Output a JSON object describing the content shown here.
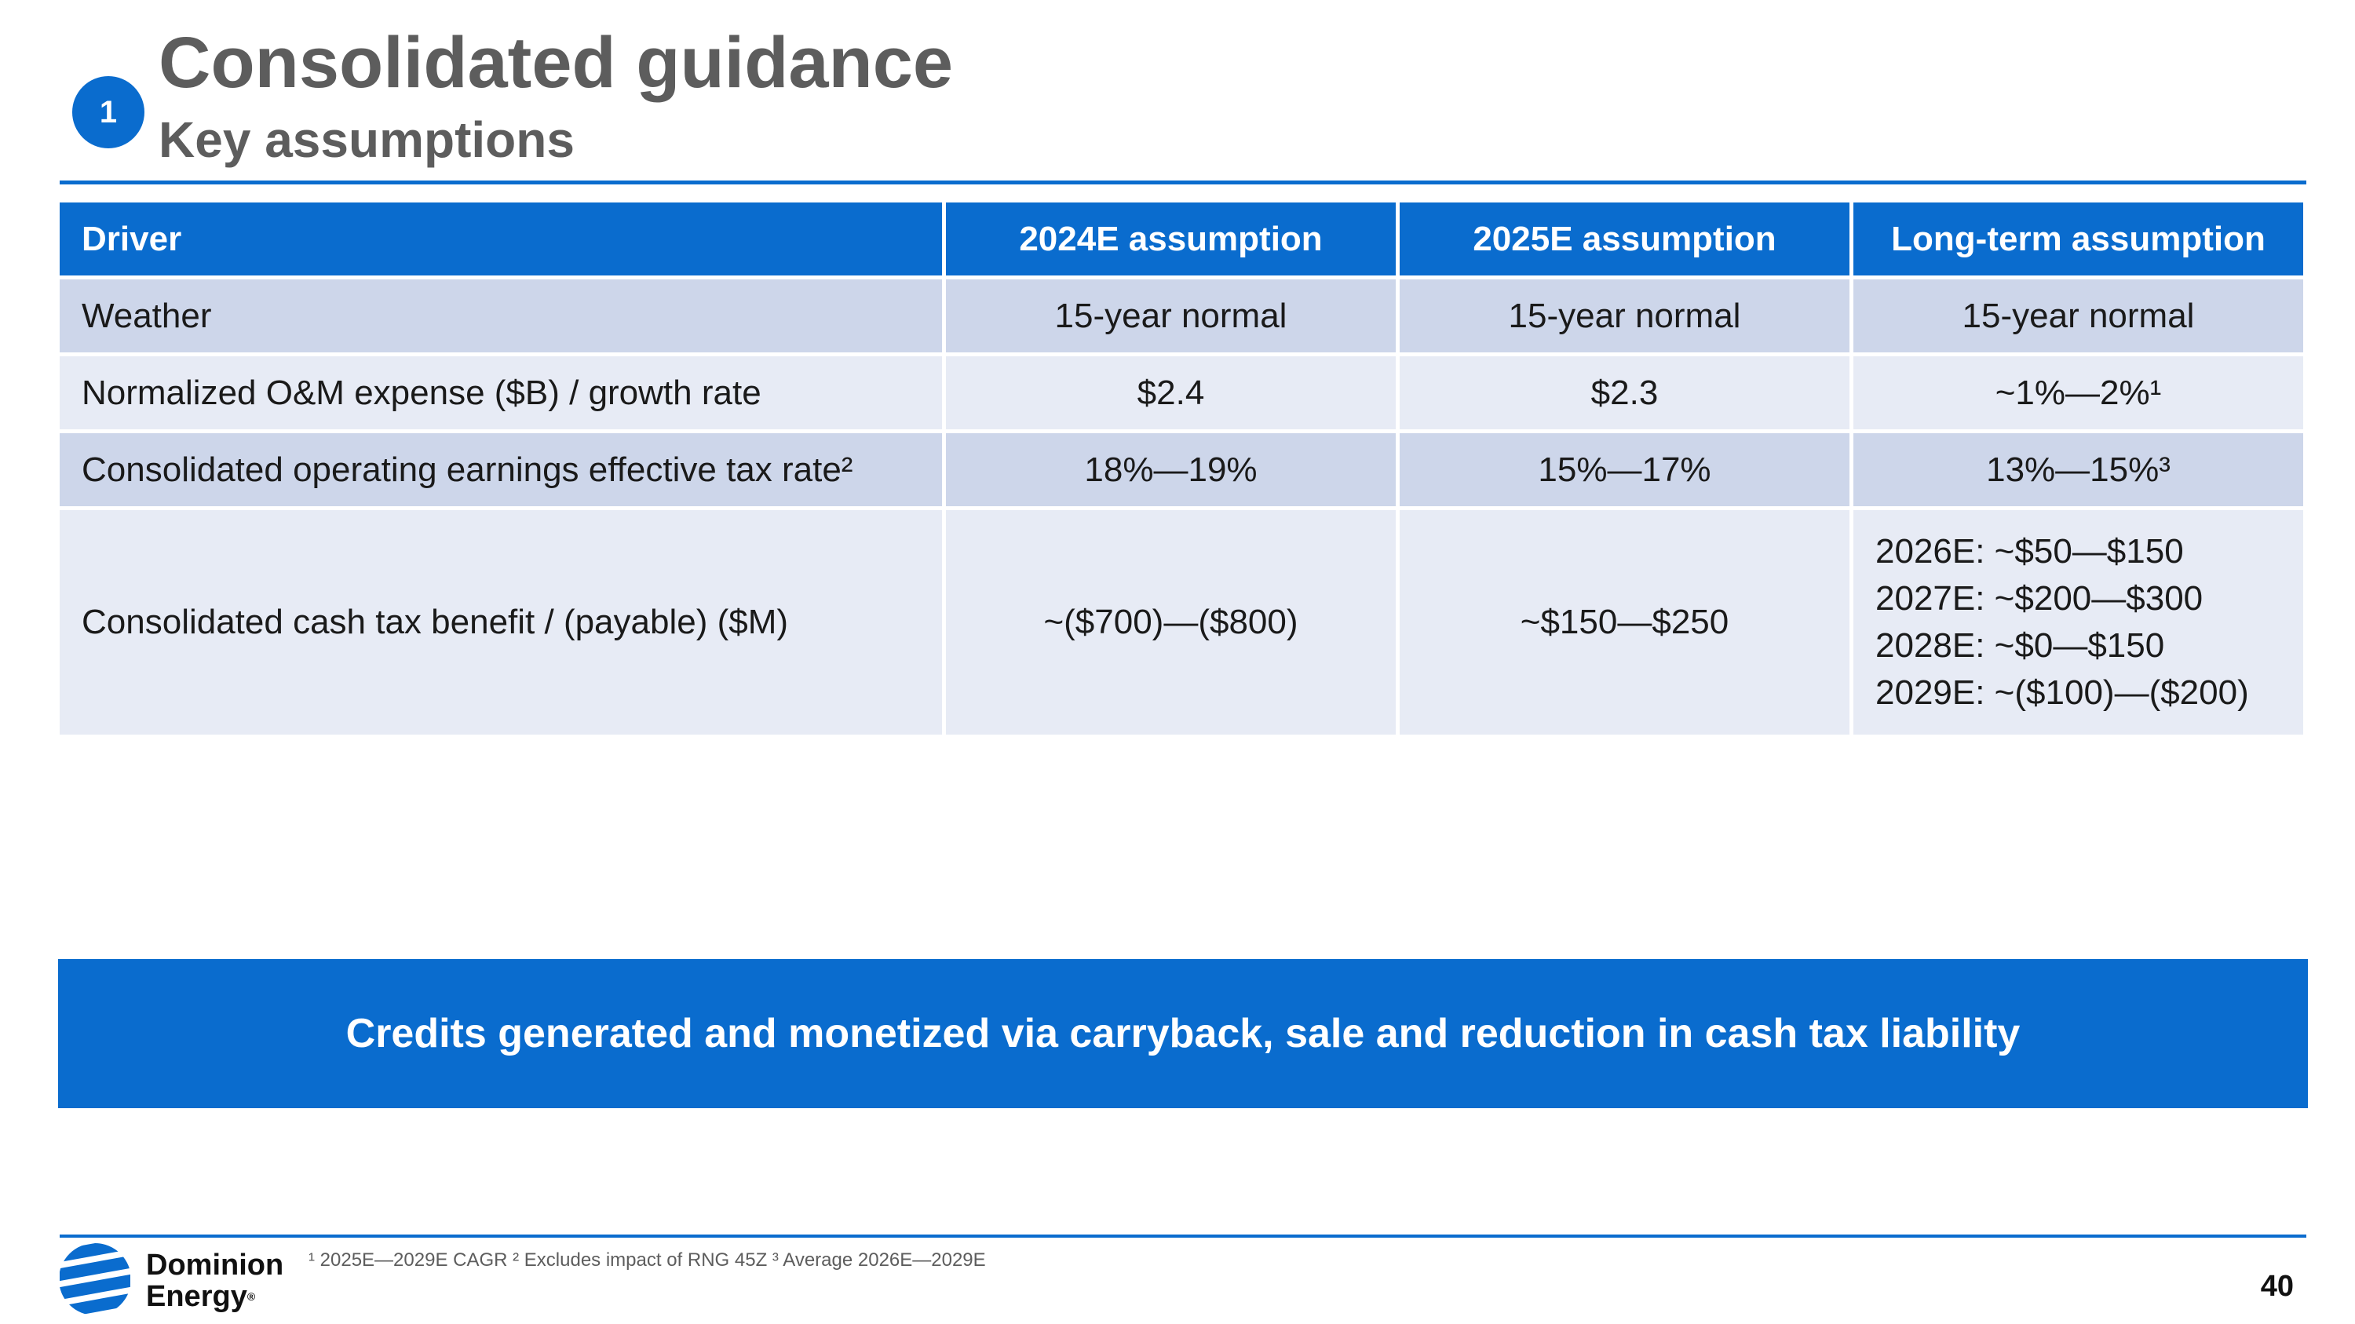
{
  "header": {
    "badge": "1",
    "title": "Consolidated guidance",
    "subtitle": "Key assumptions"
  },
  "table": {
    "columns": [
      "Driver",
      "2024E assumption",
      "2025E assumption",
      "Long-term assumption"
    ],
    "rows": [
      {
        "driver": "Weather",
        "y2024": "15-year normal",
        "y2025": "15-year normal",
        "long_term": "15-year normal"
      },
      {
        "driver": "Normalized O&M expense ($B) / growth rate",
        "y2024": "$2.4",
        "y2025": "$2.3",
        "long_term": "~1%—2%¹"
      },
      {
        "driver": "Consolidated operating earnings effective tax rate²",
        "y2024": "18%—19%",
        "y2025": "15%—17%",
        "long_term": "13%—15%³"
      },
      {
        "driver": "Consolidated cash tax benefit / (payable) ($M)",
        "y2024": "~($700)—($800)",
        "y2025": "~$150—$250",
        "long_term_lines": [
          "2026E: ~$50—$150",
          "2027E: ~$200—$300",
          "2028E: ~$0—$150",
          "2029E: ~($100)—($200)"
        ]
      }
    ]
  },
  "banner": "Credits generated and monetized via carryback, sale and reduction in cash tax liability",
  "footer": {
    "logo_line1": "Dominion",
    "logo_line2": "Energy",
    "logo_reg": "®",
    "footnote": "¹ 2025E—2029E CAGR ² Excludes impact of RNG 45Z ³ Average 2026E—2029E",
    "page_number": "40"
  },
  "colors": {
    "brand_blue": "#0a6cce",
    "row_dark": "#cdd6ea",
    "row_light": "#e7ebf5",
    "title_gray": "#5d5d5d"
  }
}
